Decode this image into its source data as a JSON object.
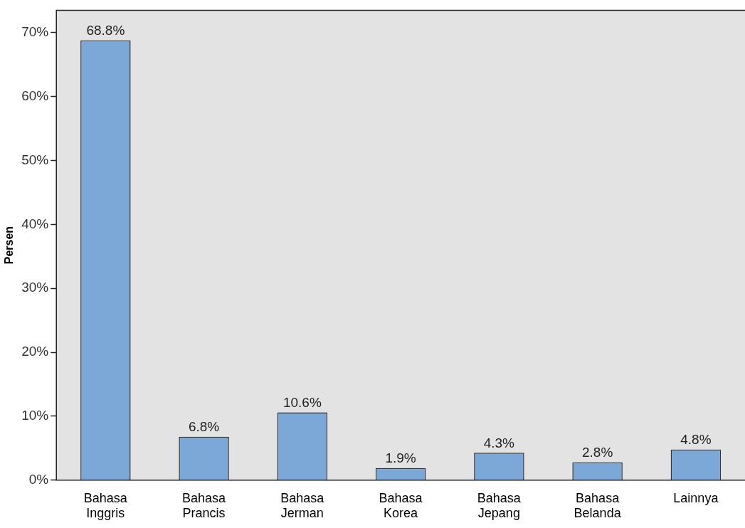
{
  "chart_data": {
    "type": "bar",
    "ylabel": "Persen",
    "categories": [
      "Bahasa Inggris",
      "Bahasa Prancis",
      "Bahasa Jerman",
      "Bahasa Korea",
      "Bahasa Jepang",
      "Bahasa Belanda",
      "Lainnya"
    ],
    "values": [
      68.8,
      6.8,
      10.6,
      1.9,
      4.3,
      2.8,
      4.8
    ],
    "value_labels": [
      "68.8%",
      "6.8%",
      "10.6%",
      "1.9%",
      "4.3%",
      "2.8%",
      "4.8%"
    ],
    "color": "#7ba8d6",
    "ylim": [
      0,
      73.5
    ],
    "yticks": [
      {
        "value": 0,
        "label": "0%"
      },
      {
        "value": 10,
        "label": "10%"
      },
      {
        "value": 20,
        "label": "20%"
      },
      {
        "value": 30,
        "label": "30%"
      },
      {
        "value": 40,
        "label": "40%"
      },
      {
        "value": 50,
        "label": "50%"
      },
      {
        "value": 60,
        "label": "60%"
      },
      {
        "value": 70,
        "label": "70%"
      }
    ],
    "grid": false,
    "legend": false
  }
}
